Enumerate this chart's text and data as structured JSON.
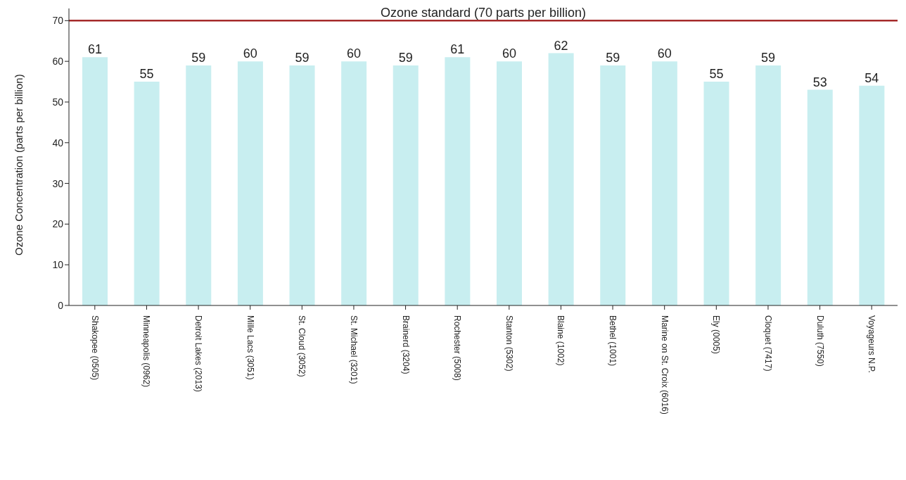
{
  "chart_data": {
    "type": "bar",
    "ylabel": "Ozone Concentration (parts per billion)",
    "categories": [
      "Shakopee (0505)",
      "Minneapolis (0962)",
      "Detroit Lakes (2013)",
      "Mille Lacs (3051)",
      "St. Cloud (3052)",
      "St. Michael (3201)",
      "Brainerd (3204)",
      "Rochester (5008)",
      "Stanton (5302)",
      "Blaine (1002)",
      "Bethel (1001)",
      "Marine on St. Croix (6016)",
      "Ely (0005)",
      "Cloquet (7417)",
      "Duluth (7550)",
      "Voyageurs N.P."
    ],
    "values": [
      61,
      55,
      59,
      60,
      59,
      60,
      59,
      61,
      60,
      62,
      59,
      60,
      55,
      59,
      53,
      54
    ],
    "color": "#c8eef0",
    "data_labels": true,
    "ylim": [
      0,
      73
    ],
    "yticks": [
      0,
      10,
      20,
      30,
      40,
      50,
      60,
      70
    ],
    "grid": false,
    "ref_lines": [
      {
        "axis": "y",
        "value": 70,
        "label": "Ozone standard (70 parts per billion)",
        "color": "#a52a2a"
      }
    ]
  }
}
